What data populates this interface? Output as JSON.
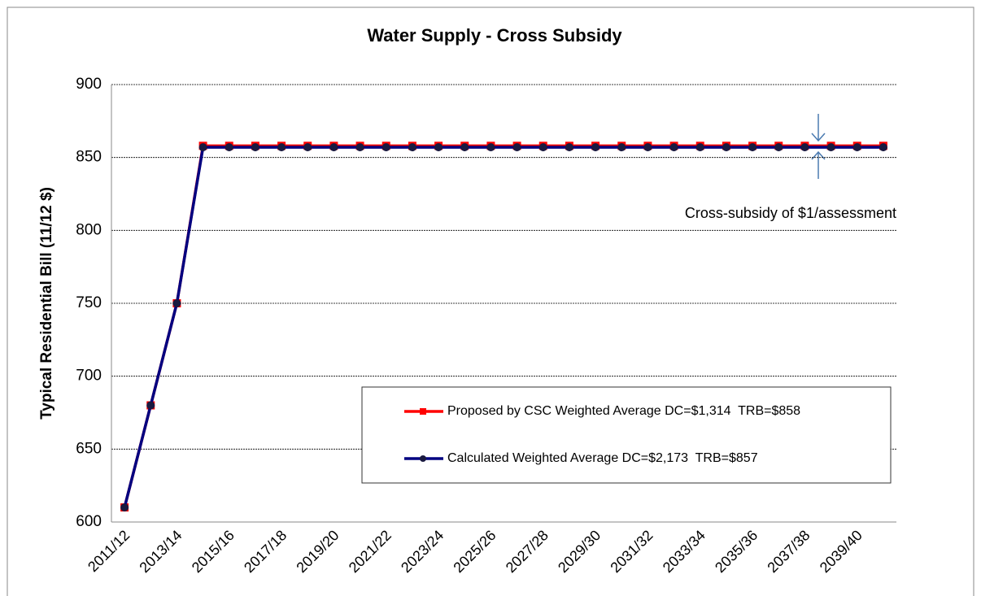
{
  "chart_data": {
    "type": "line",
    "title": "Water Supply - Cross Subsidy",
    "y_label": "Typical Residential Bill (11/12 $)",
    "annotation": "Cross-subsidy of $1/assessment",
    "categories": [
      "2011/12",
      null,
      "2013/14",
      null,
      "2015/16",
      null,
      "2017/18",
      null,
      "2019/20",
      null,
      "2021/22",
      null,
      "2023/24",
      null,
      "2025/26",
      null,
      "2027/28",
      null,
      "2029/30",
      null,
      "2031/32",
      null,
      "2033/34",
      null,
      "2035/36",
      null,
      "2037/38",
      null,
      "2039/40",
      null
    ],
    "series": [
      {
        "name": "Proposed by CSC Weighted Average DC=$1,314  TRB=$858",
        "color": "#ff0000",
        "values": [
          610,
          680,
          750,
          858,
          858,
          858,
          858,
          858,
          858,
          858,
          858,
          858,
          858,
          858,
          858,
          858,
          858,
          858,
          858,
          858,
          858,
          858,
          858,
          858,
          858,
          858,
          858,
          858,
          858,
          858
        ]
      },
      {
        "name": "Calculated Weighted Average DC=$2,173  TRB=$857",
        "color": "#000080",
        "values": [
          610,
          680,
          750,
          857,
          857,
          857,
          857,
          857,
          857,
          857,
          857,
          857,
          857,
          857,
          857,
          857,
          857,
          857,
          857,
          857,
          857,
          857,
          857,
          857,
          857,
          857,
          857,
          857,
          857,
          857
        ]
      }
    ],
    "ylim": [
      600,
      900
    ],
    "yticks": [
      600,
      650,
      700,
      750,
      800,
      850,
      900
    ],
    "grid": true
  }
}
